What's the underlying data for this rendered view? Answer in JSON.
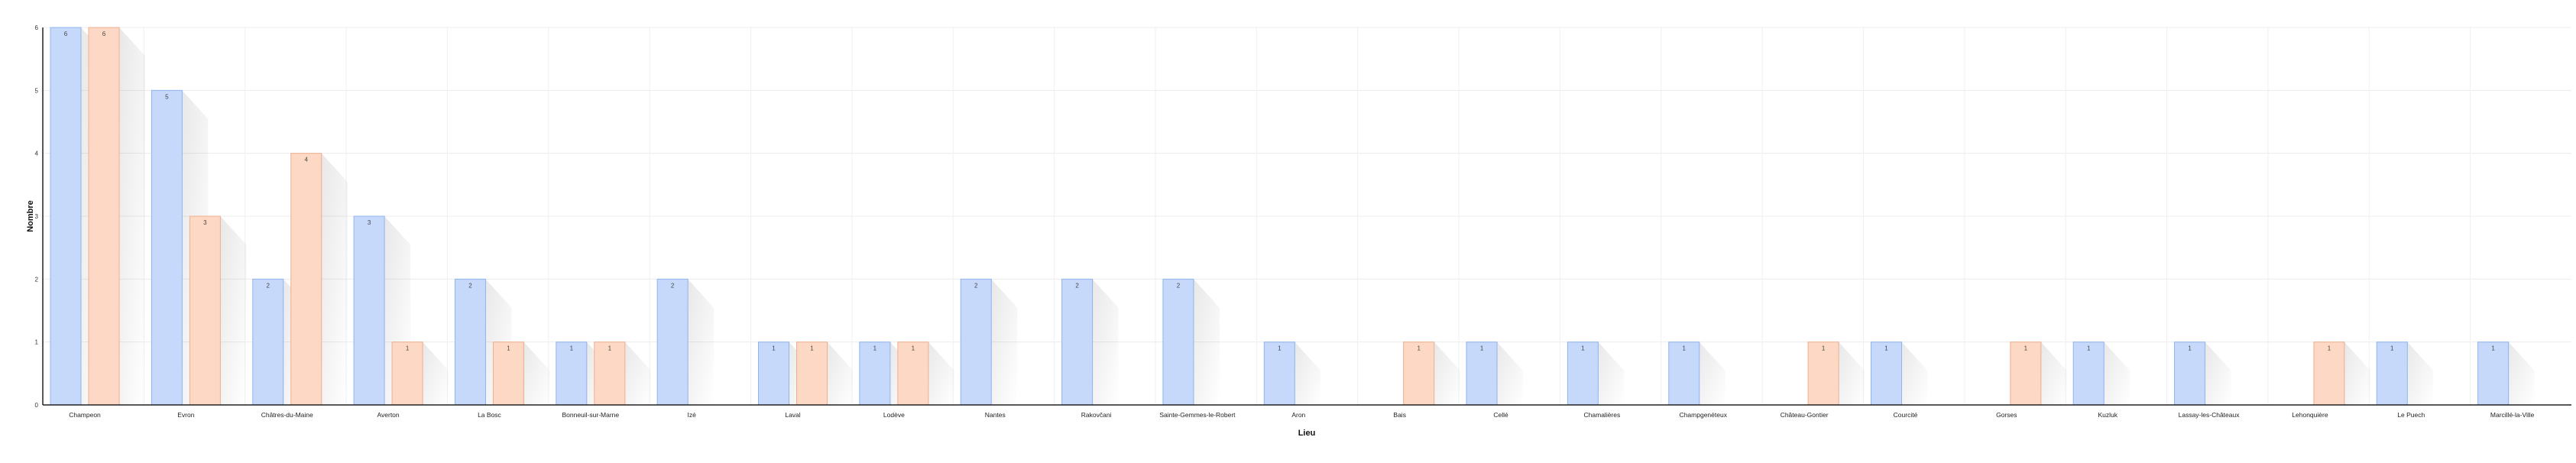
{
  "chart_data": {
    "type": "bar",
    "xlabel": "Lieu",
    "ylabel": "Nombre",
    "ylim": [
      0,
      6
    ],
    "yticks": [
      0,
      1,
      2,
      3,
      4,
      5,
      6
    ],
    "grid": true,
    "categories": [
      "Champeon",
      "Evron",
      "Châtres-du-Maine",
      "Averton",
      "La Bosc",
      "Bonneuil-sur-Marne",
      "Izé",
      "Laval",
      "Lodève",
      "Nantes",
      "Rakovčani",
      "Sainte-Gemmes-le-Robert",
      "Aron",
      "Bais",
      "Cellé",
      "Chamalières",
      "Champgenéteux",
      "Château-Gontier",
      "Courcité",
      "Gorses",
      "Kuzluk",
      "Lassay-les-Châteaux",
      "Lehonquière",
      "Le Puech",
      "Marcillé-la-Ville"
    ],
    "series": [
      {
        "color": "#c6d9fb",
        "stroke": "#8fb3ee",
        "values": [
          6,
          5,
          2,
          3,
          2,
          1,
          2,
          1,
          1,
          2,
          2,
          2,
          1,
          0,
          1,
          1,
          1,
          0,
          1,
          0,
          1,
          1,
          0,
          1,
          1
        ]
      },
      {
        "color": "#fdd9c5",
        "stroke": "#eeae8c",
        "values": [
          6,
          3,
          4,
          1,
          1,
          1,
          0,
          1,
          1,
          0,
          0,
          0,
          0,
          1,
          0,
          0,
          0,
          1,
          0,
          1,
          0,
          0,
          1,
          0,
          0
        ]
      }
    ]
  }
}
